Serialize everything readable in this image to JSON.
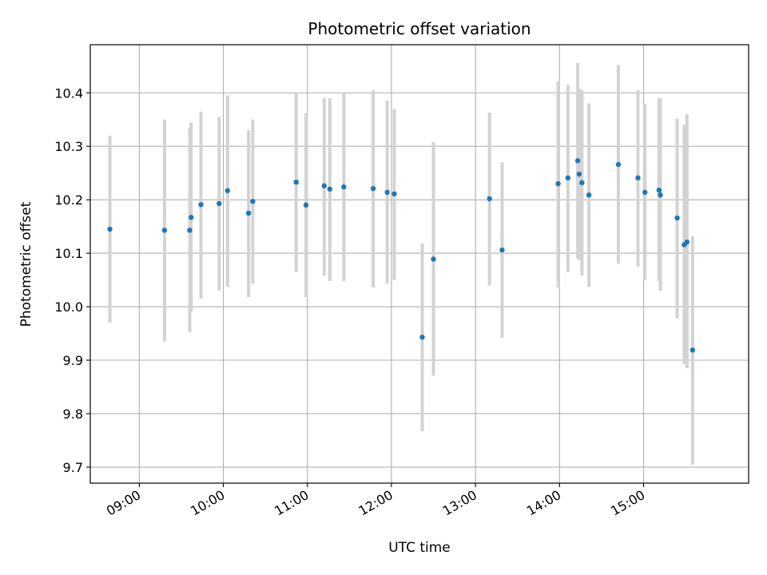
{
  "chart_data": {
    "type": "scatter",
    "title": "Photometric offset variation",
    "xlabel": "UTC time",
    "ylabel": "Photometric offset",
    "x_axis": "time",
    "xlim": [
      "08:25",
      "16:15"
    ],
    "ylim": [
      9.67,
      10.49
    ],
    "xticks": [
      "09:00",
      "10:00",
      "11:00",
      "12:00",
      "13:00",
      "14:00",
      "15:00"
    ],
    "yticks": [
      9.7,
      9.8,
      9.9,
      10.0,
      10.1,
      10.2,
      10.3,
      10.4
    ],
    "grid": true,
    "legend": "none",
    "colors": {
      "points": "#1f77b4",
      "errorbars": "#d3d3d3",
      "grid": "#b0b0b0"
    },
    "points": [
      {
        "x": "08:39",
        "y": 10.145,
        "ylow": 9.97,
        "yhigh": 10.32
      },
      {
        "x": "09:18",
        "y": 10.143,
        "ylow": 9.935,
        "yhigh": 10.35
      },
      {
        "x": "09:36",
        "y": 10.143,
        "ylow": 9.952,
        "yhigh": 10.335
      },
      {
        "x": "09:37",
        "y": 10.167,
        "ylow": 9.99,
        "yhigh": 10.345
      },
      {
        "x": "09:44",
        "y": 10.191,
        "ylow": 10.015,
        "yhigh": 10.365
      },
      {
        "x": "09:57",
        "y": 10.193,
        "ylow": 10.03,
        "yhigh": 10.355
      },
      {
        "x": "10:03",
        "y": 10.217,
        "ylow": 10.037,
        "yhigh": 10.395
      },
      {
        "x": "10:18",
        "y": 10.175,
        "ylow": 10.018,
        "yhigh": 10.33
      },
      {
        "x": "10:21",
        "y": 10.197,
        "ylow": 10.043,
        "yhigh": 10.35
      },
      {
        "x": "10:52",
        "y": 10.233,
        "ylow": 10.065,
        "yhigh": 10.4
      },
      {
        "x": "10:59",
        "y": 10.19,
        "ylow": 10.018,
        "yhigh": 10.362
      },
      {
        "x": "11:12",
        "y": 10.226,
        "ylow": 10.058,
        "yhigh": 10.39
      },
      {
        "x": "11:16",
        "y": 10.22,
        "ylow": 10.048,
        "yhigh": 10.39
      },
      {
        "x": "11:26",
        "y": 10.224,
        "ylow": 10.048,
        "yhigh": 10.4
      },
      {
        "x": "11:47",
        "y": 10.221,
        "ylow": 10.036,
        "yhigh": 10.405
      },
      {
        "x": "11:57",
        "y": 10.214,
        "ylow": 10.043,
        "yhigh": 10.385
      },
      {
        "x": "12:02",
        "y": 10.211,
        "ylow": 10.05,
        "yhigh": 10.37
      },
      {
        "x": "12:22",
        "y": 9.943,
        "ylow": 9.767,
        "yhigh": 10.118
      },
      {
        "x": "12:30",
        "y": 10.089,
        "ylow": 9.871,
        "yhigh": 10.308
      },
      {
        "x": "13:10",
        "y": 10.202,
        "ylow": 10.04,
        "yhigh": 10.363
      },
      {
        "x": "13:19",
        "y": 10.106,
        "ylow": 9.942,
        "yhigh": 10.27
      },
      {
        "x": "13:59",
        "y": 10.23,
        "ylow": 10.036,
        "yhigh": 10.422
      },
      {
        "x": "14:06",
        "y": 10.241,
        "ylow": 10.065,
        "yhigh": 10.415
      },
      {
        "x": "14:13",
        "y": 10.273,
        "ylow": 10.09,
        "yhigh": 10.456
      },
      {
        "x": "14:14",
        "y": 10.248,
        "ylow": 10.087,
        "yhigh": 10.408
      },
      {
        "x": "14:16",
        "y": 10.232,
        "ylow": 10.058,
        "yhigh": 10.405
      },
      {
        "x": "14:21",
        "y": 10.209,
        "ylow": 10.037,
        "yhigh": 10.38
      },
      {
        "x": "14:42",
        "y": 10.266,
        "ylow": 10.08,
        "yhigh": 10.452
      },
      {
        "x": "14:56",
        "y": 10.241,
        "ylow": 10.075,
        "yhigh": 10.405
      },
      {
        "x": "15:01",
        "y": 10.214,
        "ylow": 10.05,
        "yhigh": 10.38
      },
      {
        "x": "15:11",
        "y": 10.218,
        "ylow": 10.048,
        "yhigh": 10.39
      },
      {
        "x": "15:12",
        "y": 10.209,
        "ylow": 10.03,
        "yhigh": 10.39
      },
      {
        "x": "15:24",
        "y": 10.166,
        "ylow": 9.978,
        "yhigh": 10.352
      },
      {
        "x": "15:29",
        "y": 10.116,
        "ylow": 9.893,
        "yhigh": 10.34
      },
      {
        "x": "15:31",
        "y": 10.121,
        "ylow": 9.885,
        "yhigh": 10.36
      },
      {
        "x": "15:35",
        "y": 9.919,
        "ylow": 9.705,
        "yhigh": 10.132
      }
    ]
  }
}
